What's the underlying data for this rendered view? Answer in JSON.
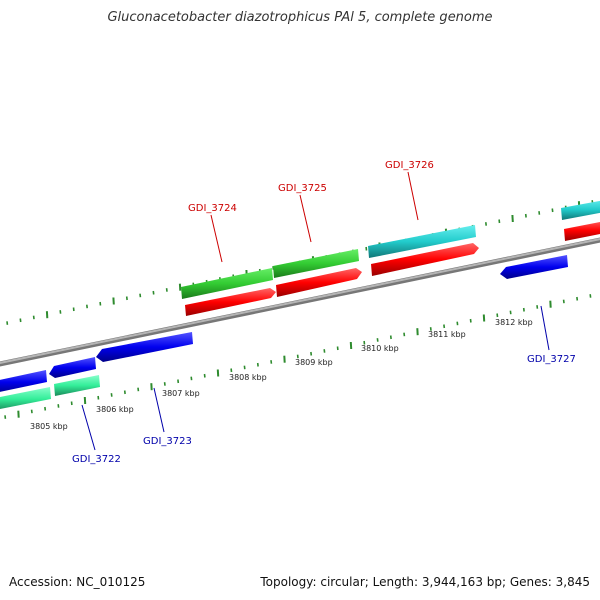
{
  "title": "Gluconacetobacter diazotrophicus PAl 5, complete genome",
  "footer": {
    "accession": "Accession: NC_010125",
    "summary": "Topology: circular; Length: 3,944,163 bp; Genes: 3,845"
  },
  "colors": {
    "backbone": "#8a8a8a",
    "ticks": "#2e8b2e",
    "forward_label": "#cc0000",
    "reverse_label": "#0000aa",
    "cds_forward_outer": "#33cc33",
    "cds_forward_inner": "#ff0000",
    "cds_forward_alt": "#22cccc",
    "cds_reverse_inner": "#0000ee",
    "cds_reverse_outer": "#33ee99"
  },
  "scale": {
    "labels": [
      {
        "kbp": 3805,
        "text": "3805 kbp"
      },
      {
        "kbp": 3806,
        "text": "3806 kbp"
      },
      {
        "kbp": 3807,
        "text": "3807 kbp"
      },
      {
        "kbp": 3808,
        "text": "3808 kbp"
      },
      {
        "kbp": 3809,
        "text": "3809 kbp"
      },
      {
        "kbp": 3810,
        "text": "3810 kbp"
      },
      {
        "kbp": 3811,
        "text": "3811 kbp"
      },
      {
        "kbp": 3812,
        "text": "3812 kbp"
      }
    ]
  },
  "gene_labels": [
    {
      "name": "GDI_3722",
      "strand": "reverse"
    },
    {
      "name": "GDI_3723",
      "strand": "reverse"
    },
    {
      "name": "GDI_3724",
      "strand": "forward"
    },
    {
      "name": "GDI_3725",
      "strand": "forward"
    },
    {
      "name": "GDI_3726",
      "strand": "forward"
    },
    {
      "name": "GDI_3727",
      "strand": "reverse"
    }
  ]
}
